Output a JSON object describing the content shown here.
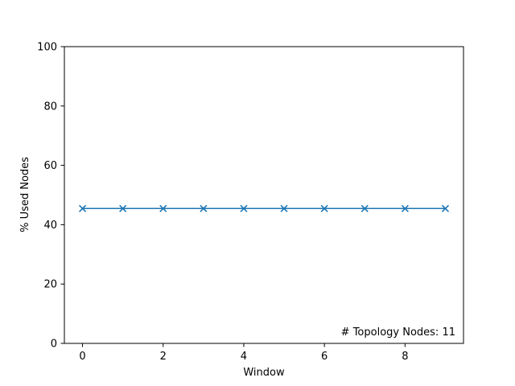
{
  "chart_data": {
    "type": "line",
    "title": "",
    "xlabel": "Window",
    "ylabel": "% Used Nodes",
    "xlim": [
      -0.45,
      9.45
    ],
    "ylim": [
      0,
      100
    ],
    "xticks": [
      0,
      2,
      4,
      6,
      8
    ],
    "yticks": [
      0,
      20,
      40,
      60,
      80,
      100
    ],
    "grid": false,
    "legend": "none",
    "annotation": "# Topology Nodes: 11",
    "marker": "x",
    "color": "#1f77b4",
    "series": [
      {
        "x": [
          0,
          1,
          2,
          3,
          4,
          5,
          6,
          7,
          8,
          9
        ],
        "values": [
          45.45,
          45.45,
          45.45,
          45.45,
          45.45,
          45.45,
          45.45,
          45.45,
          45.45,
          45.45
        ]
      }
    ]
  }
}
